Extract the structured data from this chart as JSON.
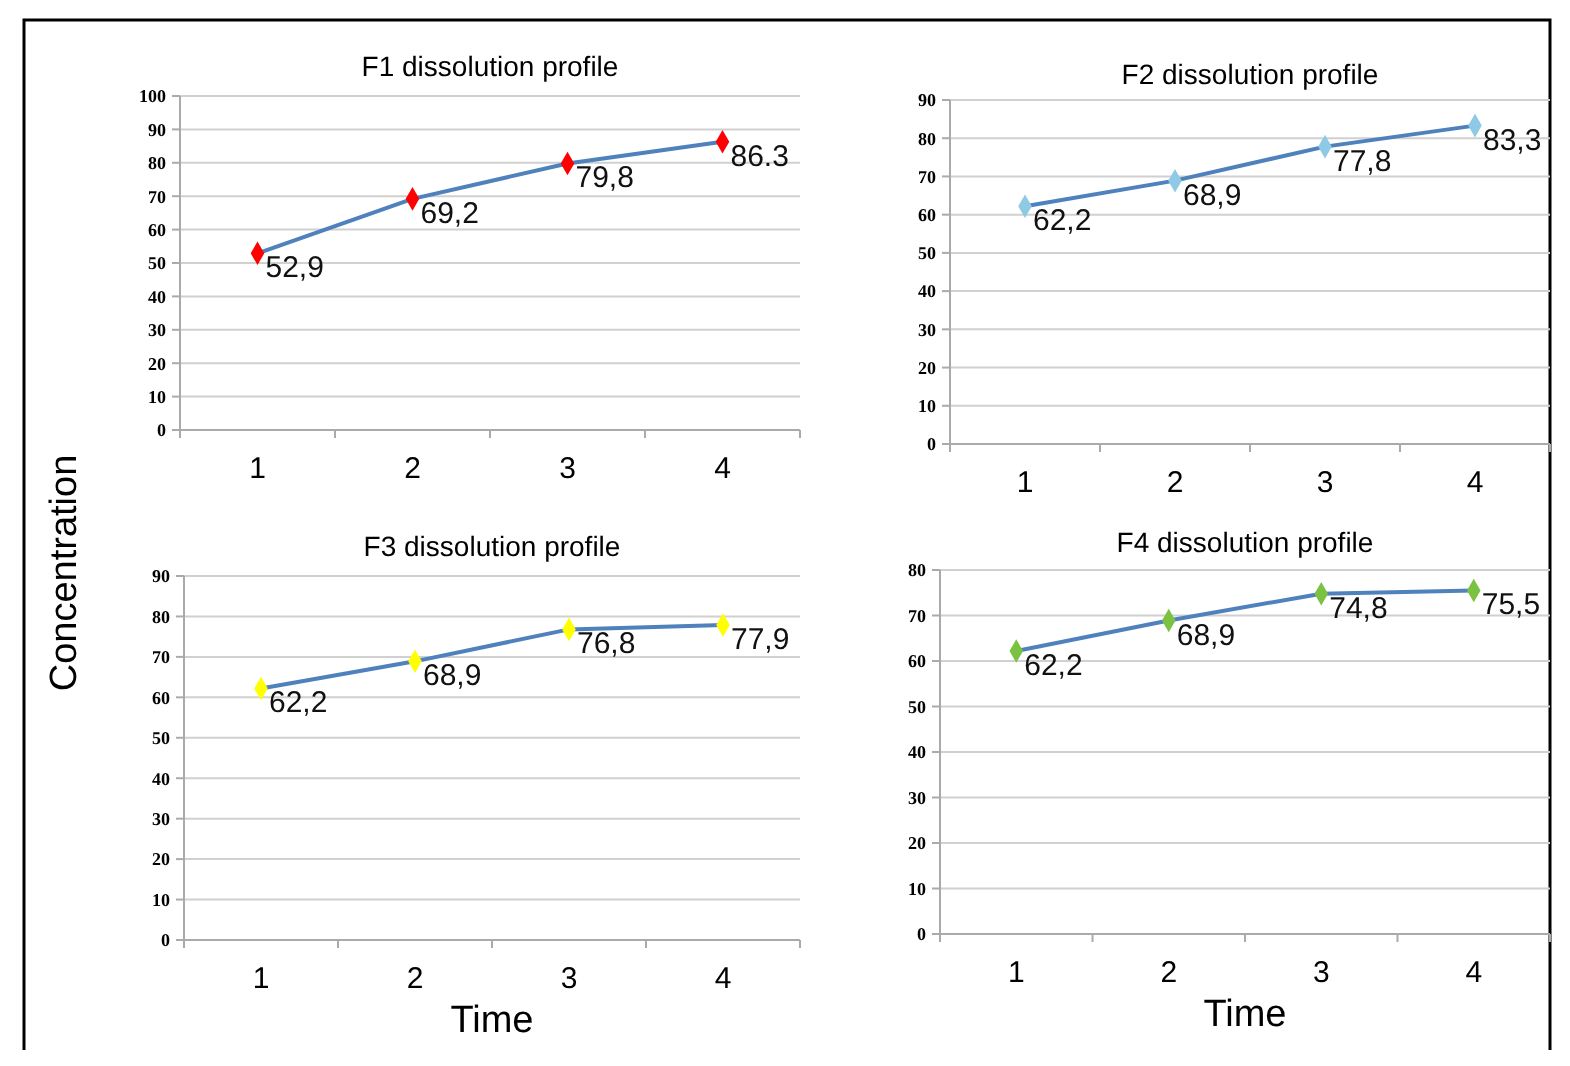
{
  "chart_data": [
    {
      "type": "line",
      "title": "F1 dissolution profile",
      "ylabel": "Concentration",
      "categories": [
        "1",
        "2",
        "3",
        "4"
      ],
      "ylim": [
        0,
        100
      ],
      "yticks": [
        0,
        10,
        20,
        30,
        40,
        50,
        60,
        70,
        80,
        90,
        100
      ],
      "grid": "y",
      "marker": "diamond",
      "series": [
        {
          "color": "#4f81bd",
          "colors": [
            "#ff0000",
            "#ff0000",
            "#ff0000",
            "#ff0000"
          ],
          "values": [
            52.9,
            69.2,
            79.8,
            86.3
          ],
          "value_labels": [
            "52,9",
            "69,2",
            "79,8",
            "86.3"
          ]
        }
      ]
    },
    {
      "type": "line",
      "title": "F2 dissolution profile",
      "categories": [
        "1",
        "2",
        "3",
        "4"
      ],
      "ylim": [
        0,
        90
      ],
      "yticks": [
        0,
        10,
        20,
        30,
        40,
        50,
        60,
        70,
        80,
        90
      ],
      "grid": "y",
      "marker": "diamond",
      "series": [
        {
          "color": "#4f81bd",
          "colors": [
            "#8ecae6",
            "#8ecae6",
            "#8ecae6",
            "#8ecae6"
          ],
          "values": [
            62.2,
            68.9,
            77.8,
            83.3
          ],
          "value_labels": [
            "62,2",
            "68,9",
            "77,8",
            "83,3"
          ]
        }
      ]
    },
    {
      "type": "line",
      "title": "F3 dissolution profile",
      "xlabel": "Time",
      "categories": [
        "1",
        "2",
        "3",
        "4"
      ],
      "ylim": [
        0,
        90
      ],
      "yticks": [
        0,
        10,
        20,
        30,
        40,
        50,
        60,
        70,
        80,
        90
      ],
      "grid": "y",
      "marker": "diamond",
      "series": [
        {
          "color": "#4f81bd",
          "colors": [
            "#ffff00",
            "#ffff00",
            "#ffff00",
            "#ffff00"
          ],
          "values": [
            62.2,
            68.9,
            76.8,
            77.9
          ],
          "value_labels": [
            "62,2",
            "68,9",
            "76,8",
            "77,9"
          ]
        }
      ]
    },
    {
      "type": "line",
      "title": "F4 dissolution profile",
      "xlabel": "Time",
      "categories": [
        "1",
        "2",
        "3",
        "4"
      ],
      "ylim": [
        0,
        80
      ],
      "yticks": [
        0,
        10,
        20,
        30,
        40,
        50,
        60,
        70,
        80
      ],
      "grid": "y",
      "marker": "diamond",
      "series": [
        {
          "color": "#4f81bd",
          "colors": [
            "#7cc242",
            "#7cc242",
            "#7cc242",
            "#7cc242"
          ],
          "values": [
            62.2,
            68.9,
            74.8,
            75.5
          ],
          "value_labels": [
            "62,2",
            "68,9",
            "74,8",
            "75,5"
          ]
        }
      ]
    }
  ]
}
